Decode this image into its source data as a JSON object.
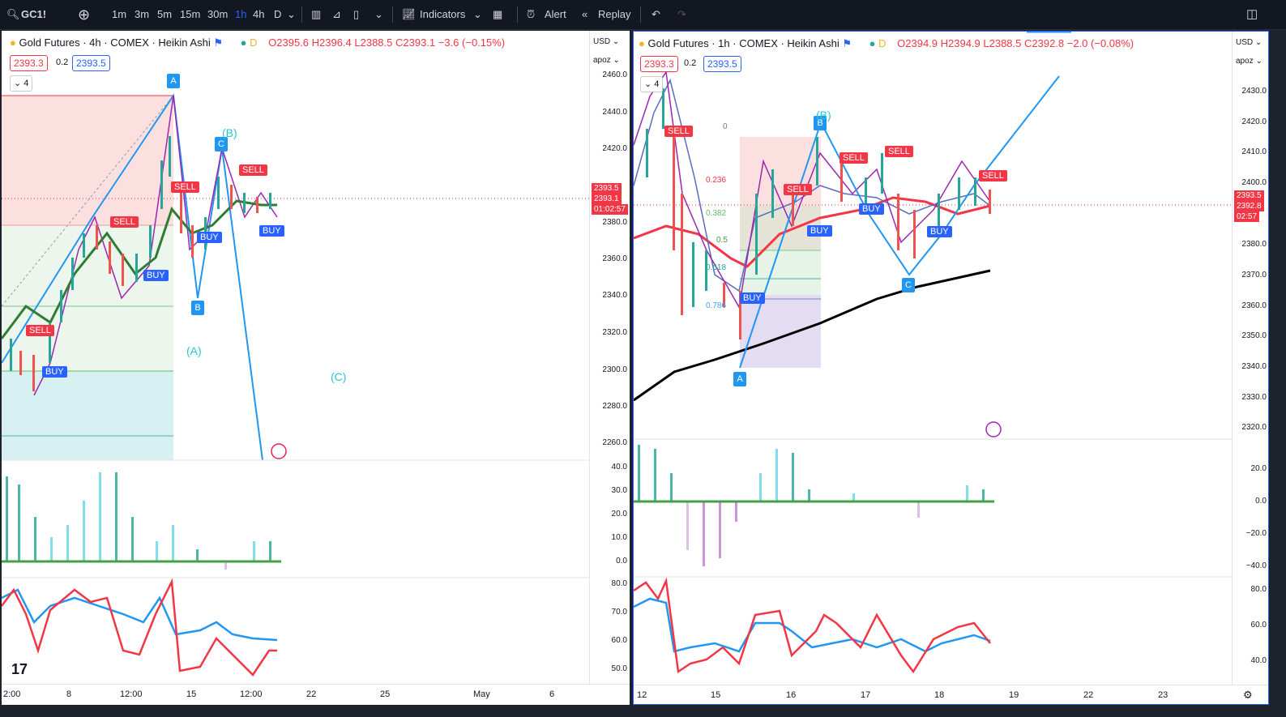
{
  "toolbar": {
    "symbol": "GC1!",
    "intervals": [
      "1m",
      "3m",
      "5m",
      "15m",
      "30m",
      "1h",
      "4h",
      "D"
    ],
    "active_interval": "1h",
    "indicators_label": "Indicators",
    "alert_label": "Alert",
    "replay_label": "Replay"
  },
  "left_chart": {
    "title": "Gold Futures · 4h · COMEX · Heikin Ashi",
    "ohlc": "O2395.6 H2396.4 L2388.5 C2393.1 −3.6 (−0.15%)",
    "bid": "2393.3",
    "spread": "0.2",
    "ask": "2393.5",
    "collapse_count": "4",
    "currency": "USD",
    "scale_mode": "apoz",
    "price_ticks": [
      "2460.0",
      "2440.0",
      "2420.0",
      "2400.0",
      "2380.0",
      "2360.0",
      "2340.0",
      "2320.0",
      "2300.0",
      "2280.0",
      "2260.0"
    ],
    "price_tags": [
      "2393.5",
      "2393.1",
      "01:02:57"
    ],
    "macd_ticks": [
      "40.0",
      "30.0",
      "20.0",
      "10.0",
      "0.0"
    ],
    "rsi_ticks": [
      "80.0",
      "70.0",
      "60.0",
      "50.0"
    ],
    "time_labels": [
      "2:00",
      "8",
      "12:00",
      "15",
      "12:00",
      "22",
      "25",
      "May",
      "6"
    ],
    "wave_labels": [
      "A",
      "B",
      "C",
      "(A)",
      "(B)",
      "(C)"
    ],
    "signal_sell": "SELL",
    "signal_buy": "BUY"
  },
  "right_chart": {
    "title": "Gold Futures · 1h · COMEX · Heikin Ashi",
    "ohlc": "O2394.9 H2394.9 L2388.5 C2392.8 −2.0 (−0.08%)",
    "bid": "2393.3",
    "spread": "0.2",
    "ask": "2393.5",
    "collapse_count": "4",
    "currency": "USD",
    "scale_mode": "apoz",
    "price_ticks": [
      "2430.0",
      "2420.0",
      "2410.0",
      "2400.0",
      "2390.0",
      "2380.0",
      "2370.0",
      "2360.0",
      "2350.0",
      "2340.0",
      "2330.0",
      "2320.0"
    ],
    "price_tags": [
      "2393.5",
      "2392.8",
      "02:57"
    ],
    "fib_levels": [
      "0",
      "0.236",
      "0.382",
      "0.5",
      "0.618",
      "0.786"
    ],
    "macd_ticks": [
      "20.0",
      "0.0",
      "−20.0",
      "−40.0"
    ],
    "rsi_ticks": [
      "80.0",
      "60.0",
      "40.0"
    ],
    "time_labels": [
      "12",
      "15",
      "16",
      "17",
      "18",
      "19",
      "22",
      "23"
    ],
    "wave_labels": [
      "A",
      "B",
      "C",
      "(B)"
    ],
    "signal_sell": "SELL",
    "signal_buy": "BUY"
  }
}
